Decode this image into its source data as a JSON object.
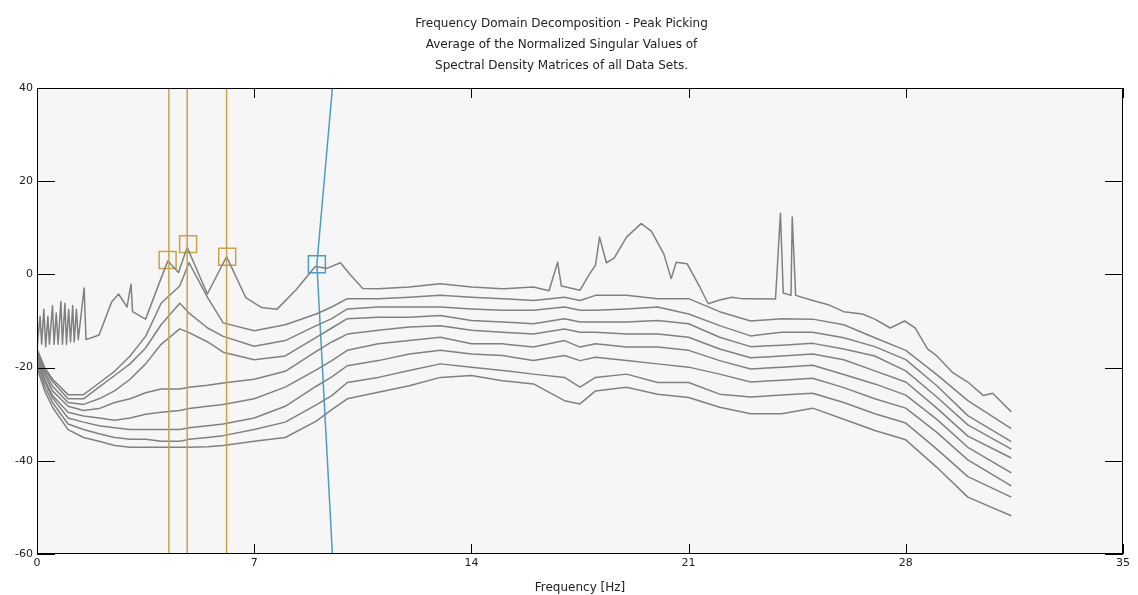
{
  "chart_data": {
    "type": "line",
    "title": "Frequency Domain Decomposition - Peak Picking\nAverage of the Normalized Singular Values of\nSpectral Density Matrices of all Data Sets.",
    "xlabel": "Frequency [Hz]",
    "xlim": [
      0,
      35
    ],
    "xticks": [
      0,
      7,
      14,
      21,
      28,
      35
    ],
    "ylim": [
      -60,
      40
    ],
    "yticks": [
      -60,
      -40,
      -20,
      0,
      20,
      40
    ],
    "x": [
      0,
      0.25,
      0.5,
      1,
      1.5,
      2,
      2.5,
      3,
      3.5,
      4,
      4.6,
      4.9,
      5.5,
      6,
      7,
      8,
      9,
      9.5,
      10,
      11,
      12,
      13,
      14,
      15,
      16,
      17,
      17.5,
      18,
      19,
      20,
      21,
      22,
      23,
      24,
      25,
      26,
      27,
      28,
      29,
      30,
      31.4
    ],
    "series": [
      {
        "color": "#808080",
        "x": [
          0,
          0.1,
          0.15,
          0.22,
          0.28,
          0.35,
          0.4,
          0.5,
          0.55,
          0.62,
          0.68,
          0.77,
          0.82,
          0.9,
          0.95,
          1.02,
          1.08,
          1.15,
          1.2,
          1.27,
          1.33,
          1.52,
          1.58,
          1.8,
          2,
          2.4,
          2.63,
          2.9,
          3.03,
          3.08,
          3.5,
          4,
          4.22,
          4.56,
          4.84,
          5.49,
          6.11,
          6.73,
          7.23,
          7.73,
          8.35,
          8.97,
          9.34,
          9.78,
          10.09,
          10.5,
          11,
          12,
          13,
          14,
          15,
          16,
          16.5,
          16.78,
          16.9,
          17.5,
          17.8,
          18,
          18.13,
          18.35,
          18.6,
          19,
          19.47,
          19.8,
          20.2,
          20.44,
          20.6,
          20.95,
          21.36,
          21.63,
          22,
          22.4,
          22.7,
          23,
          23.8,
          23.96,
          24.05,
          24.3,
          24.34,
          24.45,
          25,
          25.5,
          26,
          26.6,
          27,
          27.5,
          27.96,
          28.3,
          28.7,
          29,
          29.5,
          30,
          30.5,
          30.8,
          31.4
        ],
        "values": [
          -16,
          -9,
          -15,
          -7.5,
          -15.5,
          -9,
          -15,
          -6.7,
          -15,
          -8.3,
          -15,
          -5.8,
          -15,
          -6.2,
          -15,
          -7.5,
          -14.5,
          -6.7,
          -14.5,
          -7.5,
          -14,
          -2.9,
          -14,
          -13.5,
          -13,
          -6,
          -4.2,
          -7,
          -2.1,
          -8,
          -9.6,
          -0.8,
          2.9,
          0.4,
          5.8,
          -4.2,
          3.8,
          -5,
          -7.1,
          -7.5,
          -3.3,
          1.7,
          1.3,
          2.5,
          0,
          -3,
          -3.1,
          -2.7,
          -2,
          -2.7,
          -3.1,
          -2.7,
          -3.5,
          2.6,
          -2.5,
          -3.4,
          0,
          2,
          8,
          2.5,
          3.5,
          8,
          10.9,
          9.3,
          4.4,
          -0.9,
          2.6,
          2.3,
          -2.7,
          -6.3,
          -5.5,
          -4.9,
          -5.2,
          -5.2,
          -5.3,
          13.1,
          -4,
          -4.5,
          12.3,
          -4.5,
          -5.6,
          -6.5,
          -8,
          -8.5,
          -9.6,
          -11.5,
          -10,
          -11.5,
          -16,
          -17.5,
          -21,
          -23.1,
          -26,
          -25.5,
          -29.5
        ]
      },
      {
        "color": "#808080",
        "values": [
          -16,
          -20,
          -22.5,
          -25.8,
          -25.8,
          -23.3,
          -20.8,
          -17.5,
          -13.3,
          -6.2,
          -2.5,
          2.5,
          -5,
          -10.4,
          -12.1,
          -10.8,
          -8.5,
          -7,
          -5.2,
          -5.2,
          -4.9,
          -4.5,
          -4.9,
          -5.2,
          -5.6,
          -4.9,
          -5.6,
          -4.5,
          -4.5,
          -5.2,
          -5.2,
          -8,
          -10,
          -9.5,
          -9.6,
          -10.8,
          -13.6,
          -16.3,
          -21.5,
          -27.1,
          -33.1
        ]
      },
      {
        "color": "#808080",
        "values": [
          -16.5,
          -20.5,
          -23,
          -26.7,
          -26.7,
          -24.2,
          -21.7,
          -19.2,
          -15.8,
          -10.8,
          -6.2,
          -8.3,
          -11.5,
          -13.3,
          -15.4,
          -14.2,
          -11,
          -9.5,
          -7.4,
          -7,
          -7,
          -7,
          -7.4,
          -7.7,
          -7.7,
          -7,
          -7.7,
          -7.7,
          -7.4,
          -7,
          -8.5,
          -11,
          -13.2,
          -12.4,
          -12.4,
          -13.6,
          -15.5,
          -18.3,
          -23.9,
          -30.3,
          -35.9
        ]
      },
      {
        "color": "#808080",
        "values": [
          -17,
          -21,
          -24,
          -27.5,
          -27.9,
          -26.7,
          -25,
          -22.5,
          -19.2,
          -15,
          -11.7,
          -12.5,
          -14.5,
          -16.7,
          -18.3,
          -17.5,
          -13.5,
          -11.5,
          -9.5,
          -9.2,
          -9.2,
          -8.8,
          -9.9,
          -10.2,
          -10.6,
          -9.5,
          -10.2,
          -10.2,
          -10.2,
          -9.9,
          -10.6,
          -13.5,
          -15.5,
          -15.2,
          -14.8,
          -16,
          -17.5,
          -20.7,
          -26.3,
          -32.3,
          -37.5
        ]
      },
      {
        "color": "#808080",
        "values": [
          -17.5,
          -21.5,
          -25,
          -28.3,
          -29.2,
          -28.8,
          -27.5,
          -26.7,
          -25.4,
          -24.6,
          -24.6,
          -24.2,
          -23.8,
          -23.3,
          -22.5,
          -20.8,
          -16.5,
          -14.5,
          -12.8,
          -12,
          -11.3,
          -11,
          -12,
          -12.4,
          -12.8,
          -11.7,
          -12.4,
          -12.4,
          -12.8,
          -12.8,
          -13.5,
          -16,
          -17.9,
          -17.5,
          -17.1,
          -18.3,
          -20.7,
          -23.1,
          -28.7,
          -34.7,
          -39.4
        ]
      },
      {
        "color": "#808080",
        "values": [
          -18,
          -22.5,
          -26,
          -29.6,
          -30.4,
          -30.8,
          -31.3,
          -30.8,
          -30,
          -29.6,
          -29.2,
          -28.8,
          -28.3,
          -27.9,
          -26.7,
          -24.2,
          -20.5,
          -18.5,
          -16.3,
          -14.9,
          -14.2,
          -13.5,
          -14.9,
          -14.9,
          -15.6,
          -14.2,
          -15.6,
          -14.9,
          -15.6,
          -15.6,
          -16.3,
          -18.5,
          -20.3,
          -19.9,
          -19.5,
          -21.5,
          -23.5,
          -25.9,
          -31.1,
          -37.1,
          -42.6
        ]
      },
      {
        "color": "#808080",
        "values": [
          -18.5,
          -23,
          -26.5,
          -30.8,
          -31.7,
          -32.5,
          -32.9,
          -33.3,
          -33.3,
          -33.3,
          -33.3,
          -32.9,
          -32.5,
          -32.1,
          -30.8,
          -28.3,
          -24,
          -22,
          -19.6,
          -18.5,
          -17.1,
          -16.3,
          -17.1,
          -17.4,
          -18.5,
          -17.4,
          -18.5,
          -17.8,
          -18.5,
          -19.2,
          -19.9,
          -21.4,
          -23.1,
          -22.7,
          -22.3,
          -24.3,
          -26.7,
          -28.7,
          -33.9,
          -39.8,
          -45.4
        ]
      },
      {
        "color": "#808080",
        "values": [
          -19,
          -24,
          -27.5,
          -32.1,
          -33.3,
          -34.2,
          -35,
          -35.4,
          -35.4,
          -35.8,
          -35.8,
          -35.4,
          -35,
          -34.6,
          -33.3,
          -31.7,
          -28,
          -26,
          -23.2,
          -22.1,
          -20.6,
          -19.2,
          -19.9,
          -20.6,
          -21.4,
          -22.1,
          -24.2,
          -22.1,
          -21.4,
          -23.2,
          -23.2,
          -25.7,
          -26.3,
          -25.9,
          -25.5,
          -27.5,
          -29.9,
          -31.9,
          -37.5,
          -43.4,
          -47.8
        ]
      },
      {
        "color": "#808080",
        "values": [
          -20,
          -25,
          -28.5,
          -33.3,
          -35,
          -35.8,
          -36.7,
          -37.1,
          -37.1,
          -37.1,
          -37.1,
          -37.1,
          -37,
          -36.7,
          -35.8,
          -35,
          -31.5,
          -29,
          -26.7,
          -25.3,
          -23.9,
          -22.1,
          -21.7,
          -22.8,
          -23.5,
          -27.1,
          -27.8,
          -25,
          -24.2,
          -25.7,
          -26.4,
          -28.5,
          -29.9,
          -29.9,
          -28.7,
          -31.1,
          -33.5,
          -35.5,
          -41.4,
          -47.8,
          -51.8
        ]
      },
      {
        "type": "line",
        "color": "#4b9dc8",
        "x": [
          9.52,
          9.02,
          9.52
        ],
        "values": [
          40,
          2.2,
          -60
        ]
      },
      {
        "type": "scatter",
        "marker": "square",
        "x": [
          4.21,
          4.87,
          6.13,
          9.02
        ],
        "values": [
          3.1,
          6.5,
          3.8,
          2.2
        ],
        "colors": [
          "#c9a24f",
          "#c9a24f",
          "#c9a24f",
          "#4b9dc8"
        ]
      }
    ],
    "ref_lines": [
      {
        "axis": "x",
        "value": 4.25,
        "color": "#c9a24f"
      },
      {
        "axis": "x",
        "value": 4.84,
        "color": "#c9a24f"
      },
      {
        "axis": "x",
        "value": 6.11,
        "color": "#c9a24f"
      }
    ]
  }
}
